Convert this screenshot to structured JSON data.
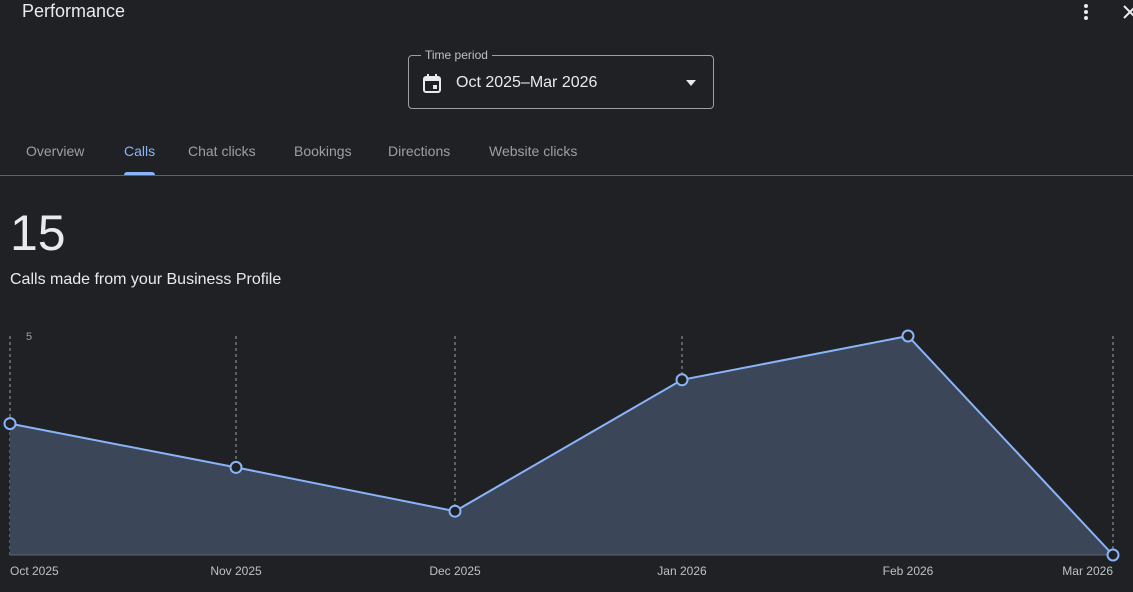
{
  "header": {
    "title": "Performance"
  },
  "icons": {
    "menu": "more-vert-icon",
    "close": "close-icon",
    "calendar": "calendar-icon",
    "caret": "dropdown-caret-icon"
  },
  "time_period": {
    "label": "Time period",
    "value": "Oct 2025–Mar 2026"
  },
  "tabs": [
    {
      "label": "Overview",
      "active": false
    },
    {
      "label": "Calls",
      "active": true
    },
    {
      "label": "Chat clicks",
      "active": false
    },
    {
      "label": "Bookings",
      "active": false
    },
    {
      "label": "Directions",
      "active": false
    },
    {
      "label": "Website clicks",
      "active": false
    }
  ],
  "metric": {
    "value": "15",
    "caption": "Calls made from your Business Profile"
  },
  "colors": {
    "background": "#202124",
    "accent": "#8ab4f8",
    "area_fill": "#3c4659",
    "text": "#e8eaed",
    "muted_text": "#9aa0a6"
  },
  "chart_data": {
    "type": "area",
    "title": "",
    "xlabel": "",
    "ylabel": "",
    "categories": [
      "Oct 2025",
      "Nov 2025",
      "Dec 2025",
      "Jan 2026",
      "Feb 2026",
      "Mar 2026"
    ],
    "series": [
      {
        "values": [
          3,
          2,
          1,
          4,
          5,
          0
        ]
      }
    ],
    "ylim": [
      0,
      5
    ],
    "y_ticks": [
      "5"
    ],
    "grid": "vertical dashed lines at each month",
    "legend": "none"
  }
}
